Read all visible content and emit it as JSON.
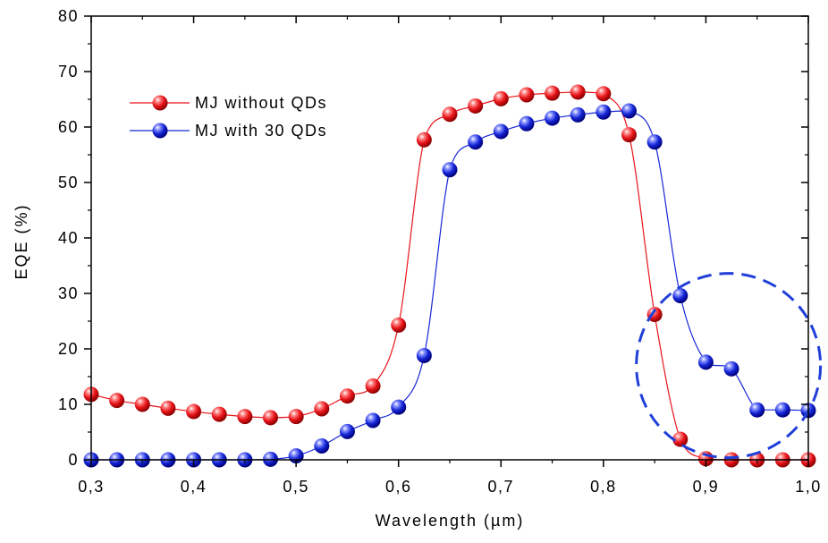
{
  "chart_data": {
    "type": "line",
    "xlabel": "Wavelength (µm)",
    "ylabel": "EQE (%)",
    "xlim": [
      0.3,
      1.0
    ],
    "ylim": [
      0,
      80
    ],
    "x_ticks": [
      0.3,
      0.4,
      0.5,
      0.6,
      0.7,
      0.8,
      0.9,
      1.0
    ],
    "x_tick_labels": [
      "0,3",
      "0,4",
      "0,5",
      "0,6",
      "0,7",
      "0,8",
      "0,9",
      "1,0"
    ],
    "y_ticks": [
      0,
      10,
      20,
      30,
      40,
      50,
      60,
      70,
      80
    ],
    "y_tick_labels": [
      "0",
      "10",
      "20",
      "30",
      "40",
      "50",
      "60",
      "70",
      "80"
    ],
    "grid": false,
    "legend_position": "top-left",
    "series": [
      {
        "name": "MJ without QDs",
        "color": "#e8141a",
        "x": [
          0.3,
          0.325,
          0.35,
          0.375,
          0.4,
          0.425,
          0.45,
          0.475,
          0.5,
          0.525,
          0.55,
          0.575,
          0.6,
          0.625,
          0.65,
          0.675,
          0.7,
          0.725,
          0.75,
          0.775,
          0.8,
          0.825,
          0.85,
          0.875,
          0.9,
          0.925,
          0.95,
          0.975,
          1.0
        ],
        "y": [
          11.8,
          10.7,
          10.0,
          9.3,
          8.7,
          8.2,
          7.8,
          7.6,
          7.8,
          9.2,
          11.5,
          13.3,
          24.3,
          57.7,
          62.3,
          63.8,
          65.1,
          65.8,
          66.1,
          66.3,
          66.0,
          58.6,
          26.2,
          3.7,
          0.2,
          0.0,
          0.0,
          0.0,
          0.0
        ]
      },
      {
        "name": "MJ with 30 QDs",
        "color": "#1526d6",
        "x": [
          0.3,
          0.325,
          0.35,
          0.375,
          0.4,
          0.425,
          0.45,
          0.475,
          0.5,
          0.525,
          0.55,
          0.575,
          0.6,
          0.625,
          0.65,
          0.675,
          0.7,
          0.725,
          0.75,
          0.775,
          0.8,
          0.825,
          0.85,
          0.875,
          0.9,
          0.925,
          0.95,
          0.975,
          1.0
        ],
        "y": [
          0.0,
          0.0,
          0.0,
          0.0,
          0.0,
          0.0,
          0.0,
          0.1,
          0.7,
          2.5,
          5.1,
          7.1,
          9.5,
          18.8,
          52.3,
          57.3,
          59.2,
          60.6,
          61.6,
          62.2,
          62.7,
          62.9,
          57.3,
          29.6,
          17.6,
          16.4,
          9.0,
          9.0,
          8.9
        ]
      }
    ],
    "annotations": [
      {
        "type": "dashed-circle",
        "color": "#1f3fd8",
        "center_x": 0.922,
        "center_y": 17.0,
        "note": "highlighted region"
      }
    ]
  }
}
